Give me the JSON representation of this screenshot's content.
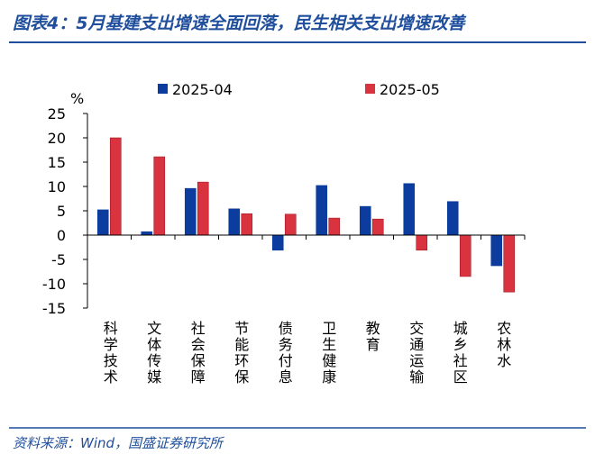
{
  "chart_data": {
    "type": "bar",
    "title": "图表4：5月基建支出增速全面回落，民生相关支出增速改善",
    "source": "资料来源：Wind，国盛证券研究所",
    "y_label": "%",
    "categories": [
      "科学技术",
      "文体传媒",
      "社会保障",
      "节能环保",
      "债务付息",
      "卫生健康",
      "教育",
      "交通运输",
      "城乡社区",
      "农林水"
    ],
    "series": [
      {
        "name": "2025-04",
        "color": "#0b3c9e",
        "values": [
          5.2,
          0.7,
          9.6,
          5.4,
          -3.1,
          10.2,
          5.9,
          10.6,
          6.9,
          -6.3
        ]
      },
      {
        "name": "2025-05",
        "color": "#d9333f",
        "values": [
          20.0,
          16.1,
          10.9,
          4.4,
          4.3,
          3.5,
          3.3,
          -3.1,
          -8.5,
          -11.7
        ]
      }
    ],
    "ylim": [
      -15,
      25
    ],
    "yticks": [
      -15,
      -10,
      -5,
      0,
      5,
      10,
      15,
      20,
      25
    ]
  }
}
